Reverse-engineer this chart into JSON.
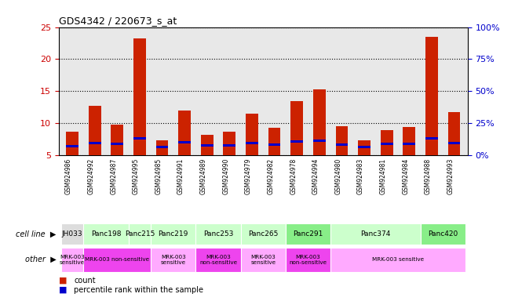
{
  "title": "GDS4342 / 220673_s_at",
  "samples": [
    "GSM924986",
    "GSM924992",
    "GSM924987",
    "GSM924995",
    "GSM924985",
    "GSM924991",
    "GSM924989",
    "GSM924990",
    "GSM924979",
    "GSM924982",
    "GSM924978",
    "GSM924994",
    "GSM924980",
    "GSM924983",
    "GSM924981",
    "GSM924984",
    "GSM924988",
    "GSM924993"
  ],
  "count_values": [
    8.7,
    12.7,
    9.8,
    23.2,
    7.3,
    12.0,
    8.2,
    8.7,
    11.5,
    9.2,
    13.4,
    15.3,
    9.5,
    7.3,
    8.9,
    9.4,
    23.5,
    11.7
  ],
  "percentile_values": [
    7.0,
    9.5,
    8.5,
    13.2,
    6.2,
    9.8,
    7.6,
    7.5,
    9.5,
    8.3,
    10.5,
    11.0,
    8.2,
    6.5,
    8.7,
    8.5,
    13.0,
    9.5
  ],
  "ymin": 5,
  "ymax": 25,
  "yticks_left": [
    5,
    10,
    15,
    20,
    25
  ],
  "yticks_right_pct": [
    0,
    25,
    50,
    75,
    100
  ],
  "cell_lines": [
    {
      "name": "JH033",
      "start": 0,
      "end": 1,
      "color": "#dddddd"
    },
    {
      "name": "Panc198",
      "start": 1,
      "end": 3,
      "color": "#ccffcc"
    },
    {
      "name": "Panc215",
      "start": 3,
      "end": 4,
      "color": "#ccffcc"
    },
    {
      "name": "Panc219",
      "start": 4,
      "end": 6,
      "color": "#ccffcc"
    },
    {
      "name": "Panc253",
      "start": 6,
      "end": 8,
      "color": "#ccffcc"
    },
    {
      "name": "Panc265",
      "start": 8,
      "end": 10,
      "color": "#ccffcc"
    },
    {
      "name": "Panc291",
      "start": 10,
      "end": 12,
      "color": "#88ee88"
    },
    {
      "name": "Panc374",
      "start": 12,
      "end": 16,
      "color": "#ccffcc"
    },
    {
      "name": "Panc420",
      "start": 16,
      "end": 18,
      "color": "#88ee88"
    }
  ],
  "other_rows": [
    {
      "text": "MRK-003\nsensitive",
      "start": 0,
      "end": 1,
      "color": "#ffaaff"
    },
    {
      "text": "MRK-003 non-sensitive",
      "start": 1,
      "end": 4,
      "color": "#ee44ee"
    },
    {
      "text": "MRK-003\nsensitive",
      "start": 4,
      "end": 6,
      "color": "#ffaaff"
    },
    {
      "text": "MRK-003\nnon-sensitive",
      "start": 6,
      "end": 8,
      "color": "#ee44ee"
    },
    {
      "text": "MRK-003\nsensitive",
      "start": 8,
      "end": 10,
      "color": "#ffaaff"
    },
    {
      "text": "MRK-003\nnon-sensitive",
      "start": 10,
      "end": 12,
      "color": "#ee44ee"
    },
    {
      "text": "MRK-003 sensitive",
      "start": 12,
      "end": 18,
      "color": "#ffaaff"
    }
  ],
  "bar_color_red": "#cc2200",
  "bar_color_blue": "#0000cc",
  "bar_width": 0.55,
  "axis_bg_color": "#e8e8e8",
  "left_axis_color": "#cc0000",
  "right_axis_color": "#0000cc",
  "cell_line_label": "cell line",
  "other_label": "other"
}
